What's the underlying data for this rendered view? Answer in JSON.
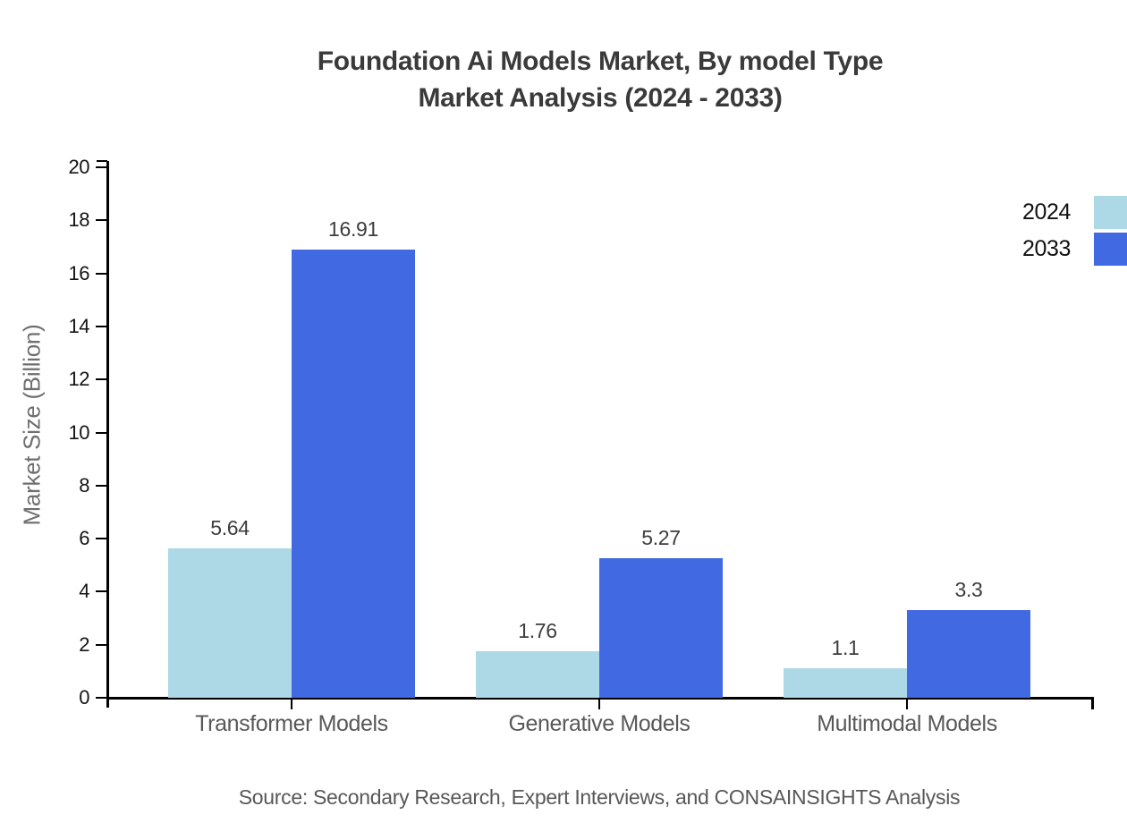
{
  "title": {
    "line1": "Foundation Ai Models Market, By model Type",
    "line2": "Market Analysis (2024 - 2033)"
  },
  "y_axis": {
    "label": "Market Size (Billion)",
    "min": 0,
    "max": 20,
    "tick_step": 2
  },
  "legend": {
    "position": "top-right",
    "entries": [
      {
        "label": "2024",
        "color": "#ADD8E6"
      },
      {
        "label": "2033",
        "color": "#4169E1"
      }
    ]
  },
  "chart_data": {
    "type": "bar",
    "title": "Foundation Ai Models Market, By model Type Market Analysis (2024 - 2033)",
    "categories": [
      "Transformer Models",
      "Generative Models",
      "Multimodal Models"
    ],
    "series": [
      {
        "name": "2024",
        "color": "#ADD8E6",
        "values": [
          5.64,
          1.76,
          1.1
        ]
      },
      {
        "name": "2033",
        "color": "#4169E1",
        "values": [
          16.91,
          5.27,
          3.3
        ]
      }
    ],
    "xlabel": "",
    "ylabel": "Market Size (Billion)",
    "ylim": [
      0,
      20
    ],
    "grid": false,
    "value_labels_shown": true,
    "legend_position": "top-right"
  },
  "source": "Source: Secondary Research, Expert Interviews, and CONSAINSIGHTS Analysis"
}
